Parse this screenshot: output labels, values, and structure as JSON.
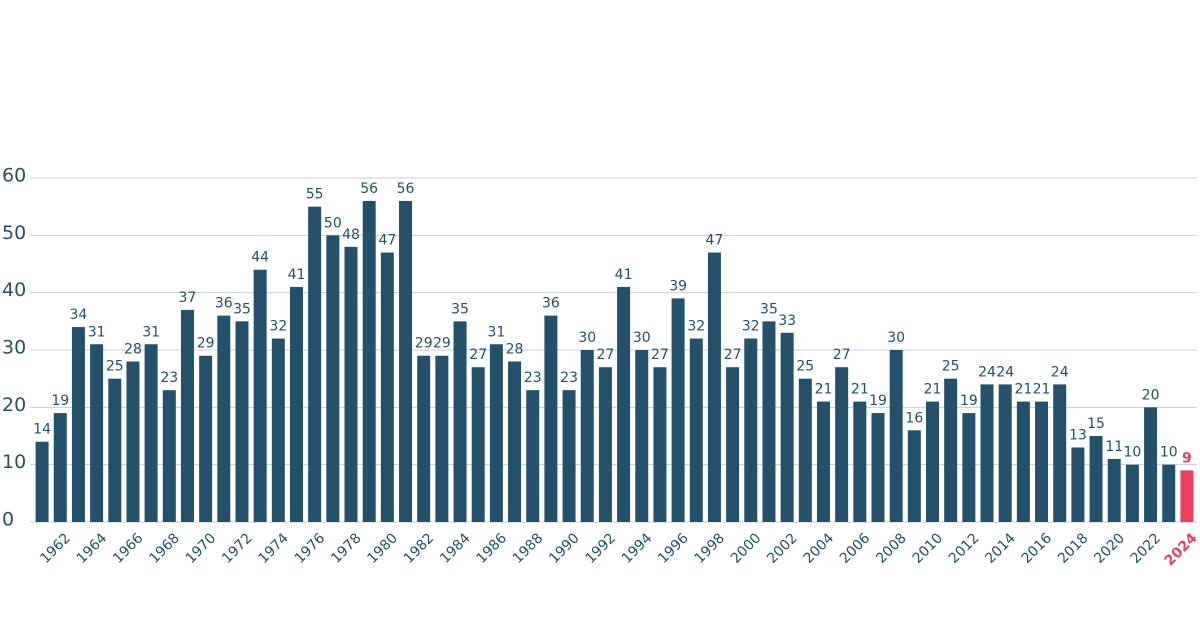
{
  "chart_data": {
    "type": "bar",
    "categories": [
      null,
      "1962",
      null,
      "1964",
      null,
      "1966",
      null,
      "1968",
      null,
      "1970",
      null,
      "1972",
      null,
      "1974",
      null,
      "1976",
      null,
      "1978",
      null,
      "1980",
      null,
      "1982",
      null,
      "1984",
      null,
      "1986",
      null,
      "1988",
      null,
      "1990",
      null,
      "1992",
      null,
      "1994",
      null,
      "1996",
      null,
      "1998",
      null,
      "2000",
      null,
      "2002",
      null,
      "2004",
      null,
      "2006",
      null,
      "2008",
      null,
      "2010",
      null,
      "2012",
      null,
      "2014",
      null,
      "2016",
      null,
      "2018",
      null,
      "2020",
      null,
      "2022",
      null,
      "2024"
    ],
    "values": [
      14,
      19,
      34,
      31,
      25,
      28,
      31,
      23,
      37,
      29,
      36,
      35,
      44,
      32,
      41,
      55,
      50,
      48,
      56,
      47,
      56,
      29,
      29,
      35,
      27,
      31,
      28,
      23,
      36,
      23,
      30,
      27,
      41,
      30,
      27,
      39,
      32,
      47,
      27,
      32,
      35,
      33,
      25,
      21,
      27,
      21,
      19,
      30,
      16,
      21,
      25,
      19,
      24,
      24,
      21,
      21,
      24,
      13,
      15,
      11,
      10,
      20,
      10,
      9
    ],
    "colors": [
      "#24506a",
      "#24506a",
      "#24506a",
      "#24506a",
      "#24506a",
      "#24506a",
      "#24506a",
      "#24506a",
      "#24506a",
      "#24506a",
      "#24506a",
      "#24506a",
      "#24506a",
      "#24506a",
      "#24506a",
      "#24506a",
      "#24506a",
      "#24506a",
      "#24506a",
      "#24506a",
      "#24506a",
      "#24506a",
      "#24506a",
      "#24506a",
      "#24506a",
      "#24506a",
      "#24506a",
      "#24506a",
      "#24506a",
      "#24506a",
      "#24506a",
      "#24506a",
      "#24506a",
      "#24506a",
      "#24506a",
      "#24506a",
      "#24506a",
      "#24506a",
      "#24506a",
      "#24506a",
      "#24506a",
      "#24506a",
      "#24506a",
      "#24506a",
      "#24506a",
      "#24506a",
      "#24506a",
      "#24506a",
      "#24506a",
      "#24506a",
      "#24506a",
      "#24506a",
      "#24506a",
      "#24506a",
      "#24506a",
      "#24506a",
      "#24506a",
      "#24506a",
      "#24506a",
      "#24506a",
      "#24506a",
      "#24506a",
      "#24506a",
      "#e8405e"
    ],
    "ylim": [
      0,
      60
    ],
    "yticks": [
      0,
      10,
      20,
      30,
      40,
      50,
      60
    ],
    "grid": true
  }
}
